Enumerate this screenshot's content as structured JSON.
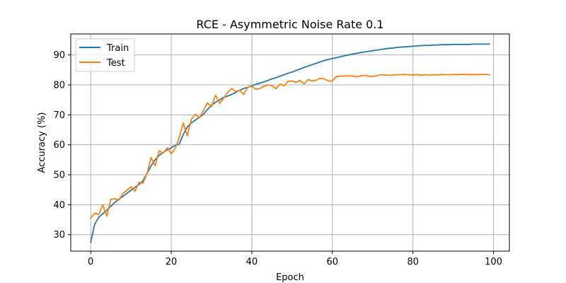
{
  "chart_data": {
    "type": "line",
    "title": "RCE - Asymmetric Noise Rate 0.1",
    "xlabel": "Epoch",
    "ylabel": "Accuracy (%)",
    "xlim": [
      -4.95,
      103.95
    ],
    "ylim": [
      24.5,
      97.0
    ],
    "xticks": [
      0,
      20,
      40,
      60,
      80,
      100
    ],
    "yticks": [
      30,
      40,
      50,
      60,
      70,
      80,
      90
    ],
    "grid": true,
    "legend_position": "top-left",
    "x": [
      0,
      1,
      2,
      3,
      4,
      5,
      6,
      7,
      8,
      9,
      10,
      11,
      12,
      13,
      14,
      15,
      16,
      17,
      18,
      19,
      20,
      21,
      22,
      23,
      24,
      25,
      26,
      27,
      28,
      29,
      30,
      31,
      32,
      33,
      34,
      35,
      36,
      37,
      38,
      39,
      40,
      41,
      42,
      43,
      44,
      45,
      46,
      47,
      48,
      49,
      50,
      51,
      52,
      53,
      54,
      55,
      56,
      57,
      58,
      59,
      60,
      61,
      62,
      63,
      64,
      65,
      66,
      67,
      68,
      69,
      70,
      71,
      72,
      73,
      74,
      75,
      76,
      77,
      78,
      79,
      80,
      81,
      82,
      83,
      84,
      85,
      86,
      87,
      88,
      89,
      90,
      91,
      92,
      93,
      94,
      95,
      96,
      97,
      98,
      99
    ],
    "series": [
      {
        "name": "Train",
        "color": "#1f77b4",
        "values": [
          27.5,
          33.5,
          35.8,
          37.0,
          38.2,
          39.5,
          40.8,
          41.8,
          42.8,
          43.8,
          44.8,
          45.8,
          46.8,
          48.0,
          50.5,
          53.0,
          55.0,
          56.5,
          57.5,
          58.3,
          59.0,
          59.8,
          60.3,
          63.5,
          66.0,
          67.3,
          68.3,
          69.2,
          70.2,
          71.8,
          73.2,
          74.2,
          75.0,
          75.8,
          76.3,
          76.8,
          77.5,
          78.2,
          78.8,
          79.2,
          79.7,
          80.2,
          80.6,
          81.0,
          81.5,
          82.0,
          82.4,
          82.9,
          83.4,
          83.9,
          84.3,
          84.8,
          85.3,
          85.8,
          86.3,
          86.8,
          87.2,
          87.7,
          88.1,
          88.5,
          88.8,
          89.1,
          89.4,
          89.7,
          90.0,
          90.3,
          90.5,
          90.8,
          91.0,
          91.2,
          91.4,
          91.6,
          91.8,
          92.0,
          92.2,
          92.3,
          92.5,
          92.6,
          92.7,
          92.8,
          92.9,
          93.0,
          93.1,
          93.2,
          93.2,
          93.3,
          93.3,
          93.4,
          93.4,
          93.4,
          93.5,
          93.5,
          93.5,
          93.5,
          93.5,
          93.6,
          93.6,
          93.6,
          93.6,
          93.6
        ]
      },
      {
        "name": "Test",
        "color": "#ff7f0e",
        "values": [
          35.5,
          37.2,
          36.7,
          40.0,
          36.2,
          41.8,
          42.0,
          41.5,
          43.8,
          44.8,
          46.0,
          44.5,
          47.5,
          47.2,
          50.5,
          55.8,
          53.0,
          58.0,
          57.2,
          59.0,
          57.0,
          58.8,
          62.5,
          67.3,
          63.0,
          68.5,
          70.2,
          69.0,
          71.5,
          74.0,
          72.8,
          76.5,
          73.8,
          75.5,
          77.5,
          78.8,
          77.8,
          78.2,
          76.8,
          79.3,
          79.5,
          78.5,
          78.8,
          79.5,
          80.0,
          79.8,
          78.7,
          80.3,
          79.7,
          81.2,
          81.3,
          80.8,
          81.5,
          80.3,
          81.8,
          81.3,
          81.6,
          82.2,
          82.0,
          81.3,
          81.3,
          82.8,
          82.9,
          83.0,
          83.0,
          83.0,
          82.7,
          83.0,
          83.2,
          82.9,
          82.8,
          83.1,
          83.4,
          83.3,
          83.2,
          83.3,
          83.4,
          83.4,
          83.5,
          83.4,
          83.3,
          83.5,
          83.2,
          83.4,
          83.2,
          83.4,
          83.3,
          83.5,
          83.4,
          83.4,
          83.5,
          83.4,
          83.5,
          83.5,
          83.4,
          83.5,
          83.4,
          83.5,
          83.5,
          83.4
        ]
      }
    ]
  }
}
